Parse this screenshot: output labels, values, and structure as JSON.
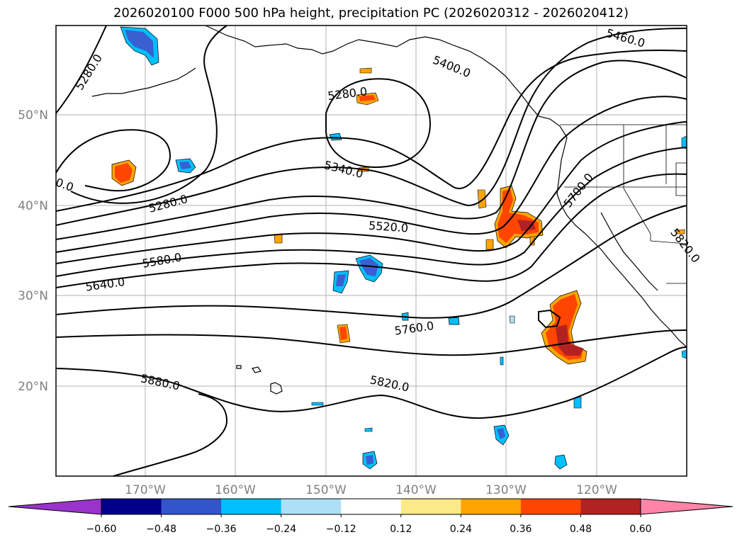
{
  "title": "2026020100 F000 500 hPa height, precipitation PC (2026020312 - 2026020412)",
  "lat_labels": [
    "50°N",
    "40°N",
    "30°N",
    "20°N"
  ],
  "lon_labels": [
    "170°W",
    "160°W",
    "150°W",
    "140°W",
    "130°W",
    "120°W"
  ],
  "contour_labels": [
    "5280.0",
    "5280.0",
    "5280.0",
    "0.0",
    "5340.0",
    "5400.0",
    "5460.0",
    "5520.0",
    "5580.0",
    "5640.0",
    "5700.0",
    "5760.0",
    "5820.0",
    "5820.0",
    "5880.0"
  ],
  "colorbar": {
    "ticks": [
      "−0.60",
      "−0.48",
      "−0.36",
      "−0.24",
      "−0.12",
      "0.12",
      "0.24",
      "0.36",
      "0.48",
      "0.60"
    ],
    "colors": [
      "#9933cc",
      "#00008b",
      "#3355cc",
      "#00bfff",
      "#aee0f5",
      "#ffffff",
      "#fce987",
      "#ffa500",
      "#ff4500",
      "#b22222",
      "#ff85a8"
    ]
  },
  "colors": {
    "negative_fill": "#3a5fd0",
    "negative_mid": "#00bfff",
    "positive_core": "#ff4500",
    "positive_edge": "#ffa500",
    "gridline": "#b0b0b0"
  }
}
